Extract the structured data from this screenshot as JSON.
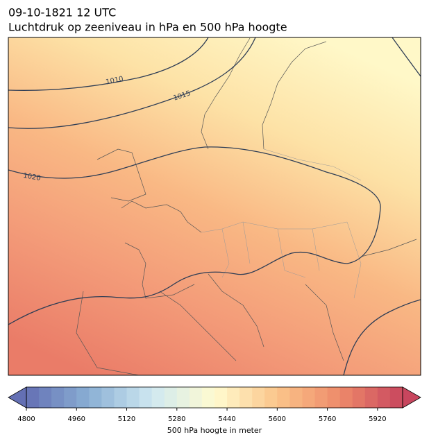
{
  "header": {
    "title": "09-10-1821 12 UTC",
    "subtitle": "Luchtdruk op zeeniveau in hPa en 500 hPa hoogte"
  },
  "isobars": [
    {
      "label": "1010"
    },
    {
      "label": "1015"
    },
    {
      "label": "1020"
    }
  ],
  "colorbar": {
    "lim": [
      4800,
      6000
    ],
    "step": 40,
    "ticks": [
      4800,
      4960,
      5120,
      5280,
      5440,
      5600,
      5760,
      5920
    ],
    "label": "500 hPa hoogte in meter",
    "colormap": [
      "#6470b4",
      "#8aafd4",
      "#cfe8f1",
      "#fffbd0",
      "#fbc58a",
      "#ee8a6a",
      "#c8465e"
    ]
  }
}
